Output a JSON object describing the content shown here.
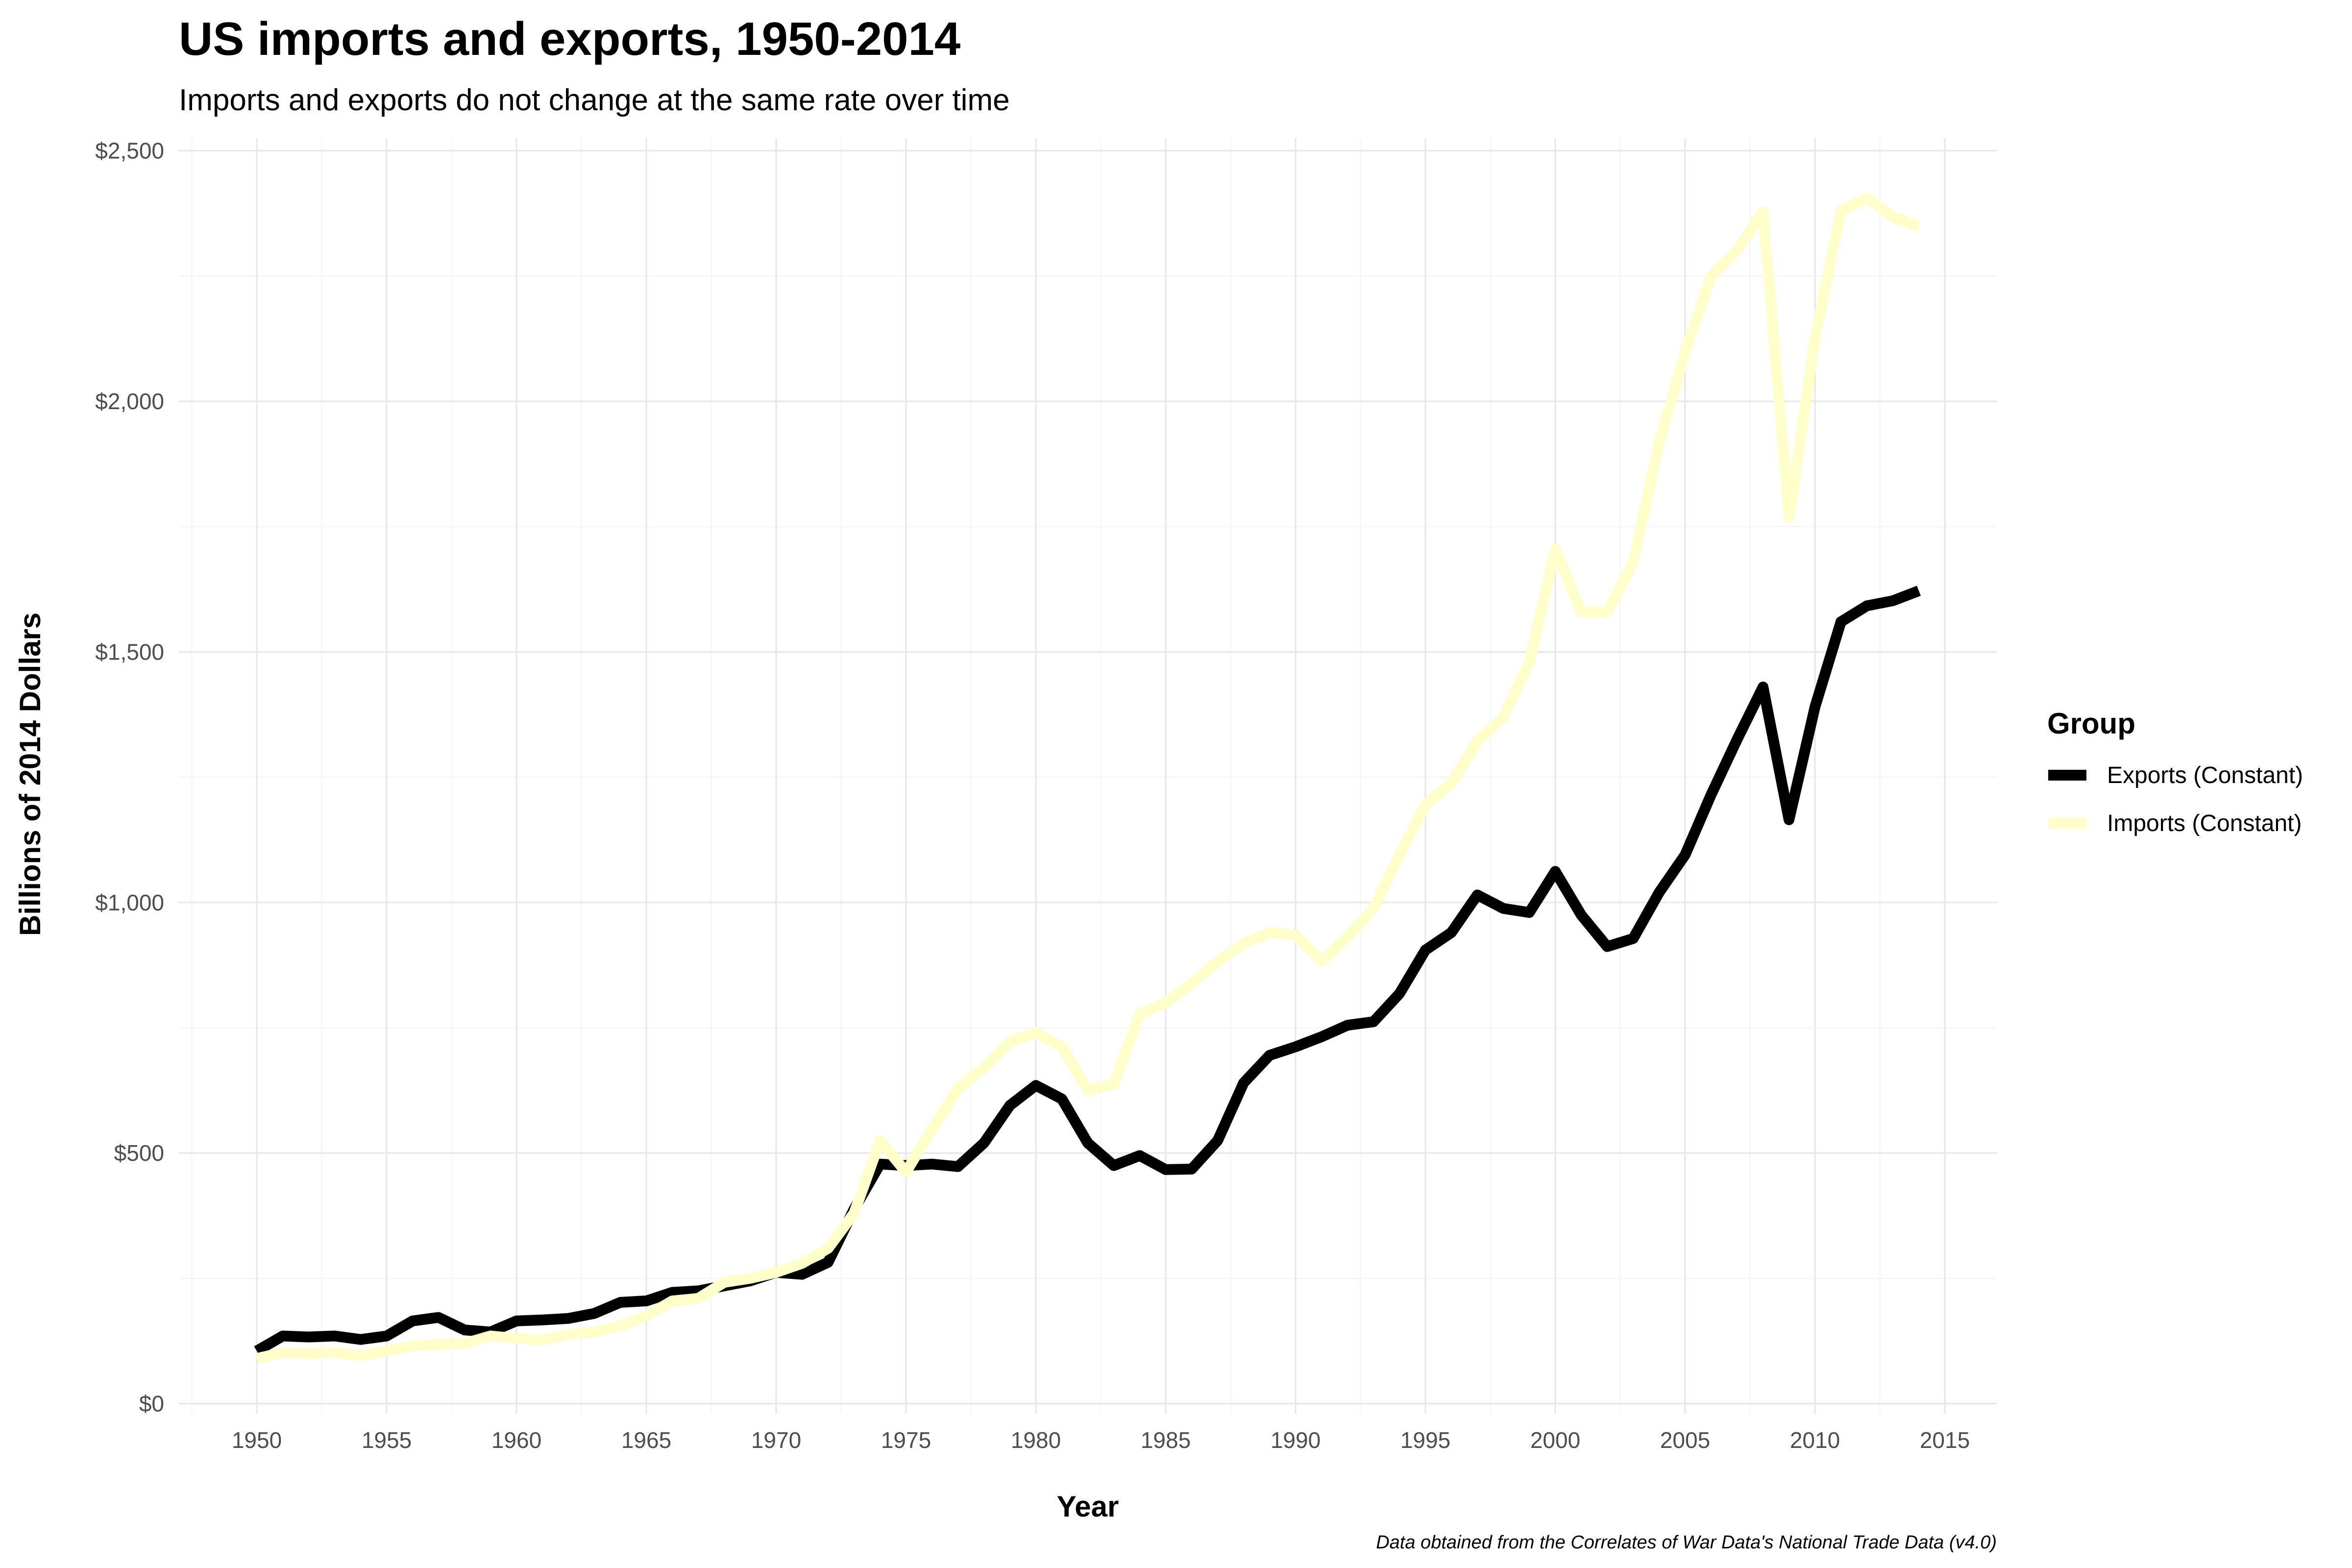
{
  "chart_data": {
    "type": "line",
    "title": "US imports and exports, 1950-2014",
    "subtitle": "Imports and exports do not change at the same rate over time",
    "xlabel": "Year",
    "ylabel": "Billions of 2014 Dollars",
    "caption": "Data obtained from the Correlates of War Data's National Trade Data (v4.0)",
    "xlim": [
      1947,
      2017
    ],
    "ylim": [
      -20,
      2525
    ],
    "x_ticks": [
      1950,
      1955,
      1960,
      1965,
      1970,
      1975,
      1980,
      1985,
      1990,
      1995,
      2000,
      2005,
      2010,
      2015
    ],
    "y_ticks": [
      0,
      500,
      1000,
      1500,
      2000,
      2500
    ],
    "y_tick_labels": [
      "$0",
      "$500",
      "$1,000",
      "$1,500",
      "$2,000",
      "$2,500"
    ],
    "grid": true,
    "legend": {
      "title": "Group",
      "position": "right"
    },
    "x": [
      1950,
      1951,
      1952,
      1953,
      1954,
      1955,
      1956,
      1957,
      1958,
      1959,
      1960,
      1961,
      1962,
      1963,
      1964,
      1965,
      1966,
      1967,
      1968,
      1969,
      1970,
      1971,
      1972,
      1973,
      1974,
      1975,
      1976,
      1977,
      1978,
      1979,
      1980,
      1981,
      1982,
      1983,
      1984,
      1985,
      1986,
      1987,
      1988,
      1989,
      1990,
      1991,
      1992,
      1993,
      1994,
      1995,
      1996,
      1997,
      1998,
      1999,
      2000,
      2001,
      2002,
      2003,
      2004,
      2005,
      2006,
      2007,
      2008,
      2009,
      2010,
      2011,
      2012,
      2013,
      2014
    ],
    "series": [
      {
        "name": "Exports (Constant)",
        "color": "#000000",
        "values": [
          105,
          135,
          133,
          135,
          128,
          135,
          165,
          172,
          147,
          143,
          165,
          167,
          170,
          180,
          202,
          205,
          222,
          225,
          235,
          245,
          262,
          258,
          282,
          388,
          478,
          475,
          478,
          473,
          520,
          595,
          635,
          608,
          520,
          475,
          495,
          467,
          468,
          525,
          640,
          695,
          712,
          732,
          755,
          762,
          818,
          905,
          940,
          1015,
          988,
          980,
          1062,
          975,
          912,
          928,
          1020,
          1095,
          1215,
          1325,
          1430,
          1165,
          1390,
          1560,
          1592,
          1602,
          1622
        ]
      },
      {
        "name": "Imports (Constant)",
        "color": "#ffffcc",
        "values": [
          90,
          102,
          100,
          102,
          95,
          105,
          115,
          118,
          120,
          135,
          130,
          127,
          138,
          143,
          155,
          175,
          205,
          210,
          242,
          250,
          262,
          280,
          310,
          380,
          525,
          462,
          548,
          628,
          670,
          722,
          740,
          712,
          625,
          638,
          778,
          800,
          838,
          882,
          918,
          940,
          935,
          882,
          932,
          988,
          1095,
          1195,
          1238,
          1322,
          1370,
          1480,
          1705,
          1580,
          1580,
          1678,
          1918,
          2098,
          2250,
          2302,
          2378,
          1768,
          2128,
          2380,
          2405,
          2368,
          2348
        ]
      }
    ]
  }
}
